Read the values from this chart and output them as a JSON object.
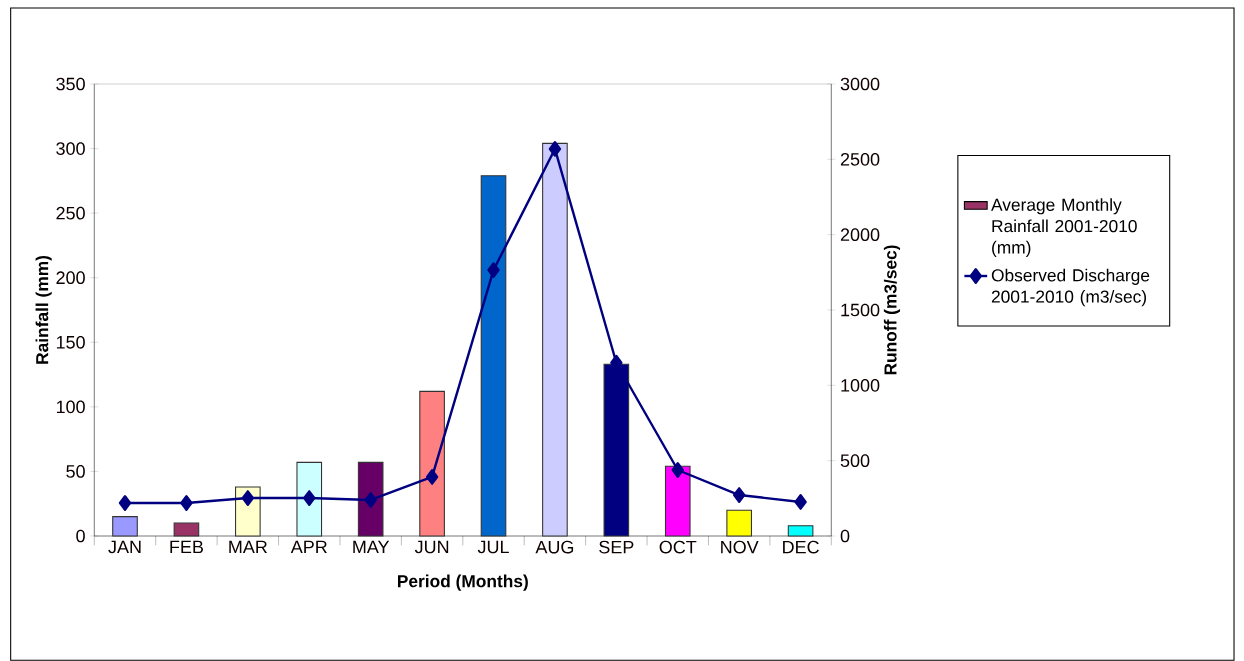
{
  "chart_data": {
    "type": "bar",
    "xlabel": "Period (Months)",
    "ylabel": "Rainfall (mm)",
    "y2label": "Runoff  (m3/sec)",
    "categories": [
      "JAN",
      "FEB",
      "MAR",
      "APR",
      "MAY",
      "JUN",
      "JUL",
      "AUG",
      "SEP",
      "OCT",
      "NOV",
      "DEC"
    ],
    "ylim": [
      0,
      350
    ],
    "yticks": [
      0,
      50,
      100,
      150,
      200,
      250,
      300,
      350
    ],
    "y2lim": [
      0,
      3000
    ],
    "y2ticks": [
      0,
      500,
      1000,
      1500,
      2000,
      2500,
      3000
    ],
    "legend": "right",
    "grid": false,
    "series": [
      {
        "name": "Average Monthly Rainfall 2001-2010 (mm)",
        "color": "#993366",
        "colors": [
          "#9999ff",
          "#993366",
          "#ffffcc",
          "#ccffff",
          "#660066",
          "#ff8080",
          "#0066cc",
          "#ccccff",
          "#000080",
          "#ff00ff",
          "#ffff00",
          "#00ffff"
        ],
        "values": [
          15,
          10,
          38,
          57,
          57,
          112,
          279,
          304,
          133,
          54,
          20,
          8
        ]
      },
      {
        "name": "Observed Discharge 2001-2010 (m3/sec)",
        "type": "line",
        "axis": "y2",
        "color": "#000080",
        "marker": "diamond",
        "values": [
          219,
          219,
          252,
          252,
          239,
          392,
          1765,
          2569,
          1150,
          438,
          272,
          226
        ]
      }
    ]
  }
}
